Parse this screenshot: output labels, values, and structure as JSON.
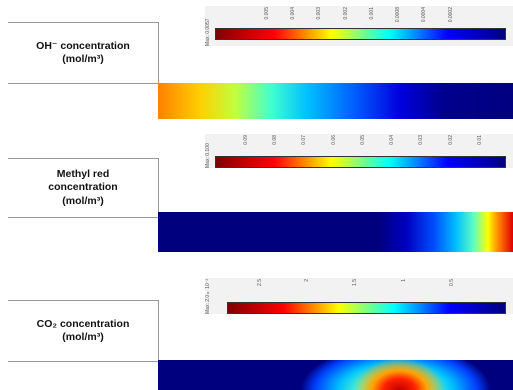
{
  "panels": [
    {
      "label_lines": [
        "OH⁻ concentration",
        "(mol/m³)"
      ],
      "max_text": "Max: 0.0057",
      "ticks": [
        "0.005",
        "0.004",
        "0.003",
        "0.002",
        "0.001",
        "0.0008",
        "0.0004",
        "0.0002"
      ],
      "colorbar": "jet-reversed",
      "field": "oh"
    },
    {
      "label_lines": [
        "Methyl red",
        "concentration",
        "(mol/m³)"
      ],
      "max_text": "Max: 0.100",
      "ticks": [
        "0.09",
        "0.08",
        "0.07",
        "0.06",
        "0.05",
        "0.04",
        "0.03",
        "0.02",
        "0.01"
      ],
      "colorbar": "jet-reversed",
      "field": "mr"
    },
    {
      "label_lines": [
        "CO₂ concentration",
        "(mol/m³)"
      ],
      "max_text": "Max: 2.0×10⁻³",
      "ticks": [
        "2.5",
        "2",
        "1.5",
        "1",
        "0.5"
      ],
      "colorbar": "jet-reversed",
      "field": "co2"
    }
  ],
  "colors": {
    "dark_blue": "#00007f",
    "blue": "#0000ff",
    "cyan": "#00ffff",
    "yellow": "#ffff00",
    "red": "#ff0000",
    "dark_red": "#7f0000"
  }
}
